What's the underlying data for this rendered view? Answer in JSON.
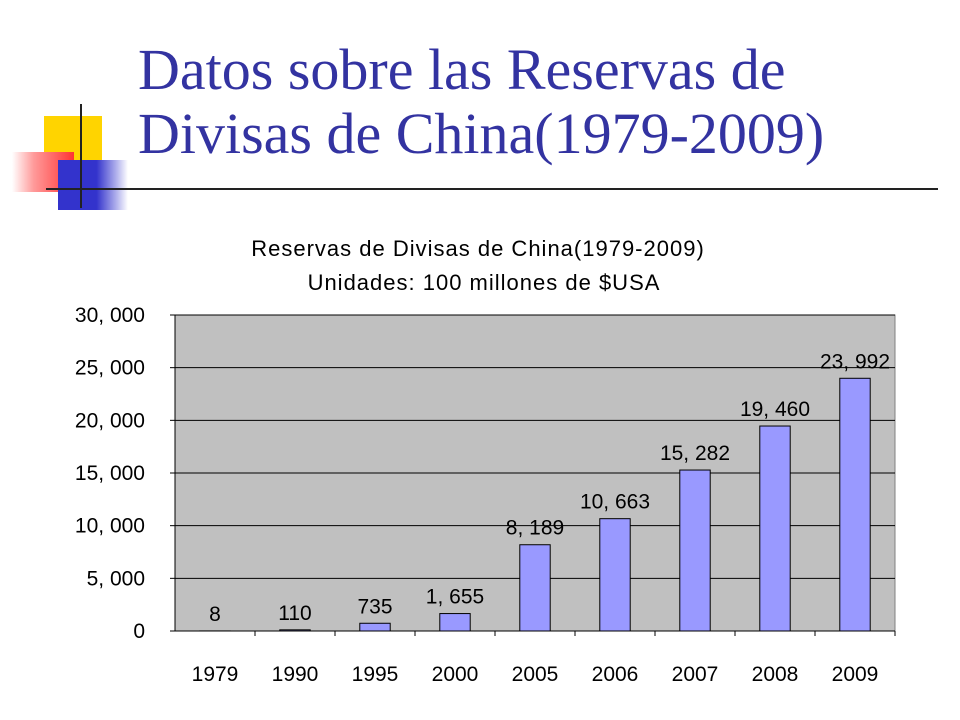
{
  "slide": {
    "title_line1": "Datos sobre las Reservas de",
    "title_line2": "Divisas de China(1979-2009)"
  },
  "colors": {
    "title": "#3333a1",
    "plot_background": "#c0c0c0",
    "bar_fill": "#9999ff",
    "deco_yellow": "#ffd400",
    "deco_blue": "#3333cc",
    "deco_red": "#ff3333"
  },
  "chart_data": {
    "type": "bar",
    "title_line1": "Reservas de Divisas de China(1979-2009)",
    "title_line2": "Unidades: 100 millones de $USA",
    "categories": [
      "1979",
      "1990",
      "1995",
      "2000",
      "2005",
      "2006",
      "2007",
      "2008",
      "2009"
    ],
    "values": [
      8,
      110,
      735,
      1655,
      8189,
      10663,
      15282,
      19460,
      23992
    ],
    "data_labels": [
      "8",
      "110",
      "735",
      "1, 655",
      "8, 189",
      "10, 663",
      "15, 282",
      "19, 460",
      "23, 992"
    ],
    "y_ticks": [
      0,
      5000,
      10000,
      15000,
      20000,
      25000,
      30000
    ],
    "y_tick_labels": [
      "0",
      "5, 000",
      "10, 000",
      "15, 000",
      "20, 000",
      "25, 000",
      "30, 000"
    ],
    "ylim": [
      0,
      30000
    ],
    "grid": true,
    "legend": false
  }
}
